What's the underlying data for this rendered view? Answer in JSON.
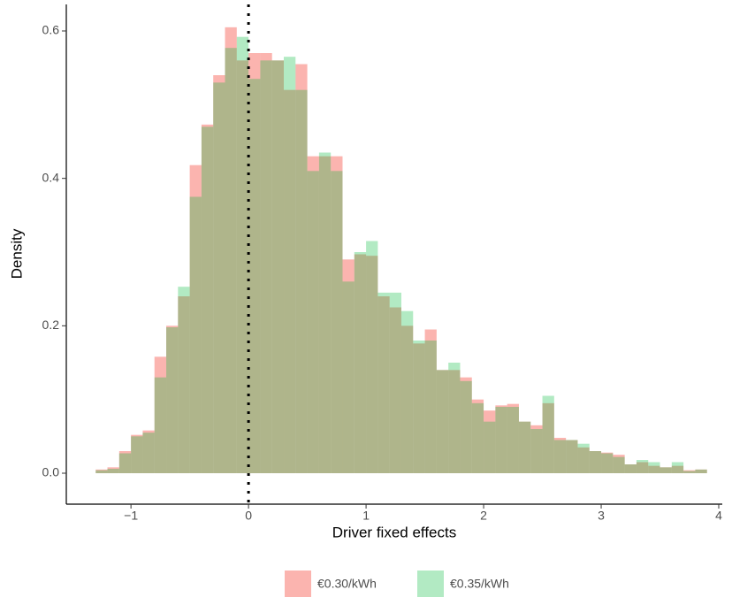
{
  "chart_data": {
    "type": "histogram",
    "xlabel": "Driver fixed effects",
    "ylabel": "Density",
    "bins": [
      -1.3,
      -1.2,
      -1.1,
      -1.0,
      -0.9,
      -0.8,
      -0.7,
      -0.6,
      -0.5,
      -0.4,
      -0.3,
      -0.2,
      -0.1,
      0.0,
      0.1,
      0.2,
      0.3,
      0.4,
      0.5,
      0.6,
      0.7,
      0.8,
      0.9,
      1.0,
      1.1,
      1.2,
      1.3,
      1.4,
      1.5,
      1.6,
      1.7,
      1.8,
      1.9,
      2.0,
      2.1,
      2.2,
      2.3,
      2.4,
      2.5,
      2.6,
      2.7,
      2.8,
      2.9,
      3.0,
      3.1,
      3.2,
      3.3,
      3.4,
      3.5,
      3.6,
      3.7,
      3.8,
      3.9
    ],
    "series": [
      {
        "name": "€0.30/kWh",
        "color": "#F8766D",
        "opacity": 0.55,
        "values": [
          0.005,
          0.008,
          0.03,
          0.052,
          0.058,
          0.158,
          0.2,
          0.24,
          0.418,
          0.473,
          0.54,
          0.605,
          0.56,
          0.57,
          0.57,
          0.56,
          0.52,
          0.555,
          0.43,
          0.43,
          0.43,
          0.29,
          0.297,
          0.295,
          0.24,
          0.225,
          0.2,
          0.176,
          0.195,
          0.14,
          0.14,
          0.13,
          0.1,
          0.085,
          0.092,
          0.094,
          0.07,
          0.065,
          0.095,
          0.048,
          0.045,
          0.035,
          0.03,
          0.028,
          0.025,
          0.012,
          0.015,
          0.01,
          0.008,
          0.01,
          0.004,
          0.005
        ]
      },
      {
        "name": "€0.35/kWh",
        "color": "#00BA38",
        "opacity": 0.3,
        "values": [
          0.004,
          0.006,
          0.027,
          0.05,
          0.055,
          0.13,
          0.198,
          0.253,
          0.375,
          0.47,
          0.53,
          0.577,
          0.592,
          0.535,
          0.56,
          0.56,
          0.565,
          0.52,
          0.41,
          0.435,
          0.41,
          0.26,
          0.3,
          0.315,
          0.245,
          0.245,
          0.22,
          0.18,
          0.18,
          0.14,
          0.15,
          0.125,
          0.095,
          0.07,
          0.09,
          0.09,
          0.07,
          0.06,
          0.105,
          0.045,
          0.045,
          0.04,
          0.03,
          0.027,
          0.022,
          0.012,
          0.018,
          0.015,
          0.008,
          0.015,
          0.003,
          0.005
        ]
      }
    ],
    "vline": 0,
    "xlim": [
      -1.55,
      4.03
    ],
    "ylim": [
      -0.042,
      0.636
    ],
    "xticks": [
      {
        "value": -1,
        "label": "−1"
      },
      0,
      1,
      2,
      3,
      4
    ],
    "yticks": [
      {
        "value": 0,
        "label": "0.0"
      },
      0.2,
      0.4,
      0.6
    ],
    "legend": "bottom"
  }
}
